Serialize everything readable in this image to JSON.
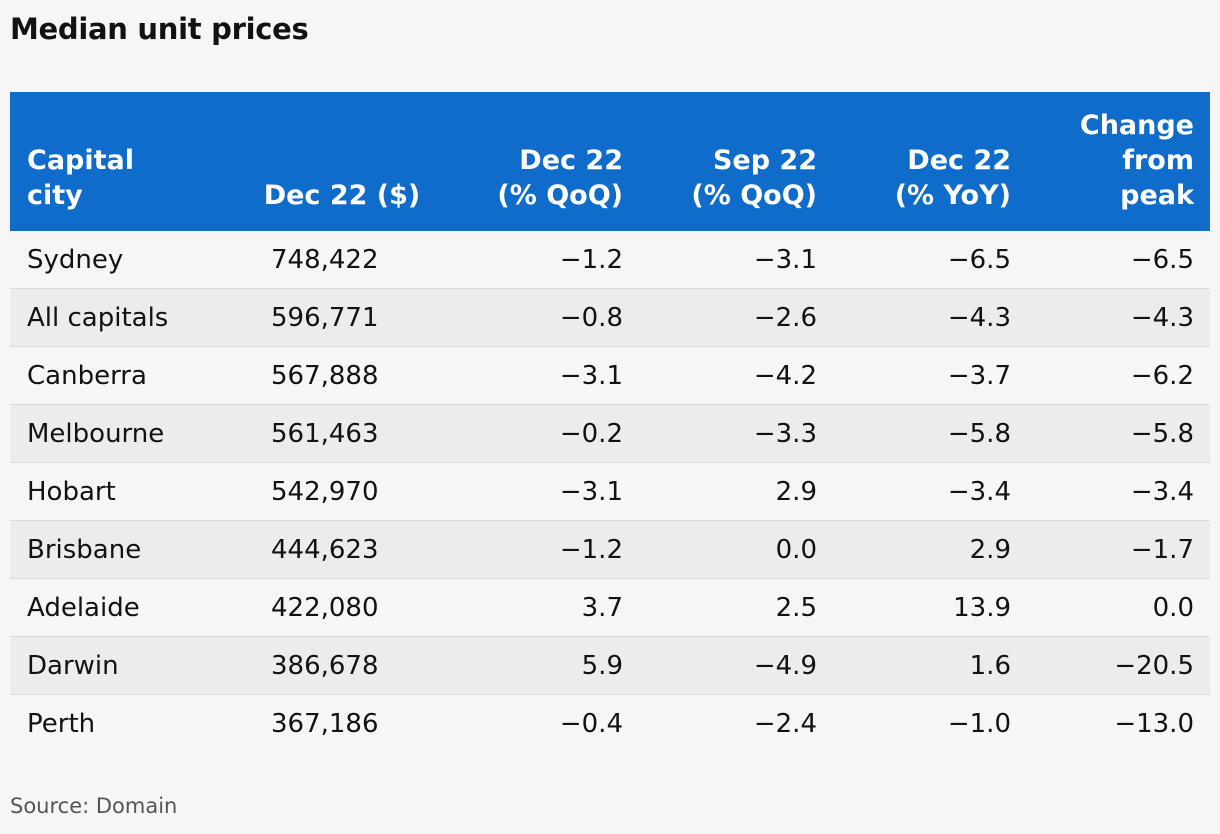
{
  "title": "Median unit prices",
  "source": "Source: Domain",
  "colors": {
    "header_bg": "#0f6ccb",
    "header_text": "#ffffff",
    "row_alt_bg": "#ececec",
    "page_bg": "#f6f6f6"
  },
  "chart_data": {
    "type": "table",
    "title": "Median unit prices",
    "columns": [
      [
        "Capital",
        "city"
      ],
      [
        "Dec 22 ($)"
      ],
      [
        "Dec 22",
        "(% QoQ)"
      ],
      [
        "Sep 22",
        "(% QoQ)"
      ],
      [
        "Dec 22",
        "(% YoY)"
      ],
      [
        "Change",
        "from",
        "peak"
      ]
    ],
    "rows": [
      [
        "Sydney",
        "748,422",
        "−1.2",
        "−3.1",
        "−6.5",
        "−6.5"
      ],
      [
        "All capitals",
        "596,771",
        "−0.8",
        "−2.6",
        "−4.3",
        "−4.3"
      ],
      [
        "Canberra",
        "567,888",
        "−3.1",
        "−4.2",
        "−3.7",
        "−6.2"
      ],
      [
        "Melbourne",
        "561,463",
        "−0.2",
        "−3.3",
        "−5.8",
        "−5.8"
      ],
      [
        "Hobart",
        "542,970",
        "−3.1",
        "2.9",
        "−3.4",
        "−3.4"
      ],
      [
        "Brisbane",
        "444,623",
        "−1.2",
        "0.0",
        "2.9",
        "−1.7"
      ],
      [
        "Adelaide",
        "422,080",
        "3.7",
        "2.5",
        "13.9",
        "0.0"
      ],
      [
        "Darwin",
        "386,678",
        "5.9",
        "−4.9",
        "1.6",
        "−20.5"
      ],
      [
        "Perth",
        "367,186",
        "−0.4",
        "−2.4",
        "−1.0",
        "−13.0"
      ]
    ]
  }
}
